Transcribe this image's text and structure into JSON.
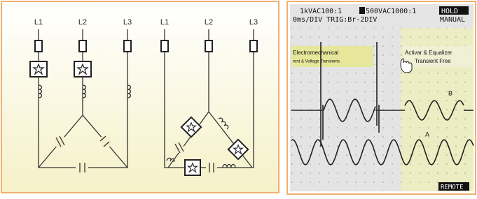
{
  "circuit": {
    "left_labels": [
      "L1",
      "L2",
      "L3"
    ],
    "right_labels": [
      "L1",
      "L2",
      "L3"
    ]
  },
  "scope": {
    "header": [
      "1kVAC100:1",
      "500VAC1000:1",
      "HOLD"
    ],
    "subheader": [
      "0ms/DIV TRIG:Br-2DIV",
      "MANUAL"
    ],
    "left_note": [
      "Electromechanical",
      "rent & Voltage Transients"
    ],
    "right_note": [
      "Activar & Equalizer",
      "Transient Free"
    ],
    "trace_labels": [
      "B",
      "A"
    ],
    "footer": "REMOTE"
  }
}
